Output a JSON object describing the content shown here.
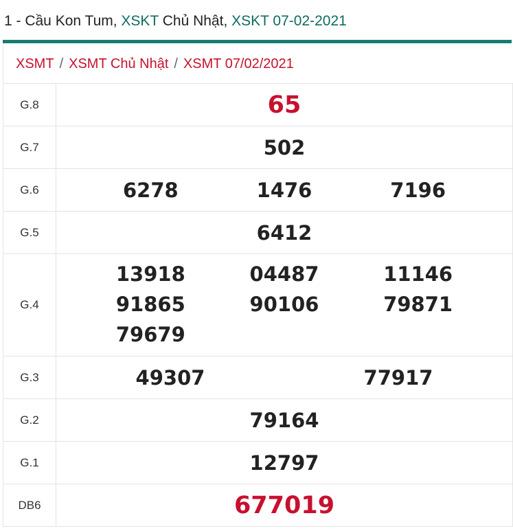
{
  "header": {
    "prefix": "1 - Cầu Kon Tum, ",
    "link1": "XSKT",
    "middle": " Chủ Nhật, ",
    "link2": "XSKT 07-02-2021"
  },
  "breadcrumb": {
    "items": [
      "XSMT",
      "XSMT Chủ Nhật",
      "XSMT 07/02/2021"
    ],
    "separator": "/"
  },
  "results": {
    "g8": {
      "label": "G.8",
      "values": [
        "65"
      ]
    },
    "g7": {
      "label": "G.7",
      "values": [
        "502"
      ]
    },
    "g6": {
      "label": "G.6",
      "values": [
        {
          "pre": "6",
          "hl": "2",
          "post": "78"
        },
        {
          "pre": "1476",
          "hl": "",
          "post": ""
        },
        {
          "pre": "71",
          "hl": "96",
          "post": ""
        }
      ]
    },
    "g5": {
      "label": "G.5",
      "values": [
        "6412"
      ]
    },
    "g4": {
      "label": "G.4",
      "values": [
        "13918",
        "04487",
        "11146",
        "91865",
        "90106",
        "79871",
        "79679"
      ]
    },
    "g3": {
      "label": "G.3",
      "values": [
        {
          "pre": "49307",
          "hl": ""
        },
        {
          "pre": "7791",
          "hl": "7"
        }
      ]
    },
    "g2": {
      "label": "G.2",
      "values": [
        "79164"
      ]
    },
    "g1": {
      "label": "G.1",
      "values": [
        "12797"
      ]
    },
    "db": {
      "label": "DB6",
      "values": [
        "677019"
      ]
    }
  },
  "colors": {
    "red": "#c8102e",
    "teal": "#0e6b5e",
    "orange": "#f5a11c"
  }
}
